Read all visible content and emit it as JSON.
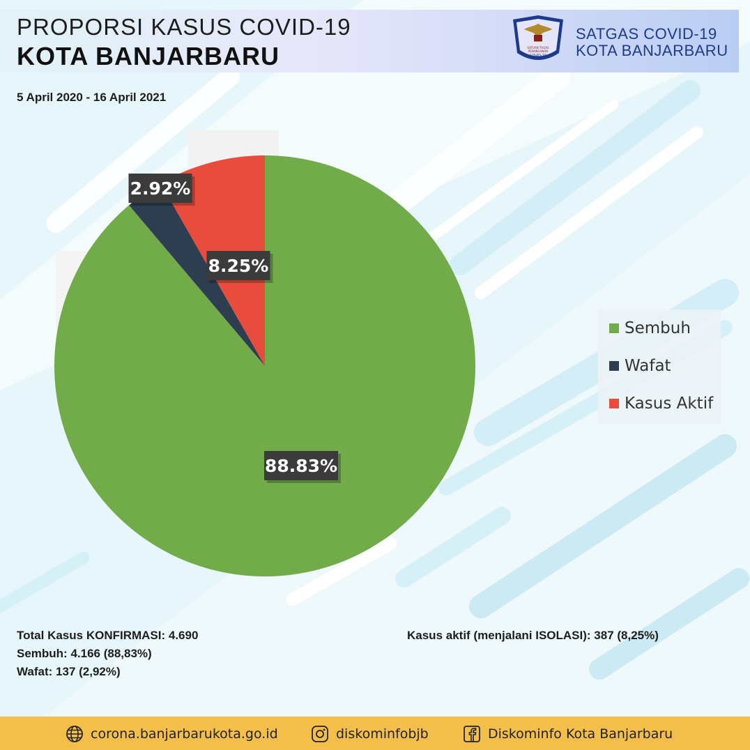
{
  "header": {
    "title_line1": "PROPORSI KASUS COVID-19",
    "title_line2": "KOTA BANJARBARU",
    "date_range": "5 April 2020 - 16 April 2021",
    "org_line1": "SATGAS COVID-19",
    "org_line2": "KOTA BANJARBARU",
    "logo_text": "SATUAN TUGAS PENANGANAN COVID-19",
    "logo_icon": "garuda-shield-icon"
  },
  "chart_data": {
    "type": "pie",
    "categories": [
      "Sembuh",
      "Wafat",
      "Kasus Aktif"
    ],
    "values": [
      88.83,
      2.92,
      8.25
    ],
    "labels": [
      "88.83%",
      "2.92%",
      "8.25%"
    ],
    "colors": [
      "#72ab4a",
      "#2c3e50",
      "#e84c3d"
    ],
    "legend_position": "right",
    "title": ""
  },
  "stats": {
    "total": "Total Kasus KONFIRMASI: 4.690",
    "sembuh": "Sembuh: 4.166 (88,83%)",
    "wafat": "Wafat: 137 (2,92%)",
    "aktif": "Kasus aktif (menjalani ISOLASI): 387 (8,25%)"
  },
  "footer": {
    "website": "corona.banjarbarukota.go.id",
    "instagram": "diskominfobjb",
    "facebook": "Diskominfo Kota Banjarbaru",
    "icons": [
      "globe-icon",
      "instagram-icon",
      "facebook-icon"
    ]
  }
}
